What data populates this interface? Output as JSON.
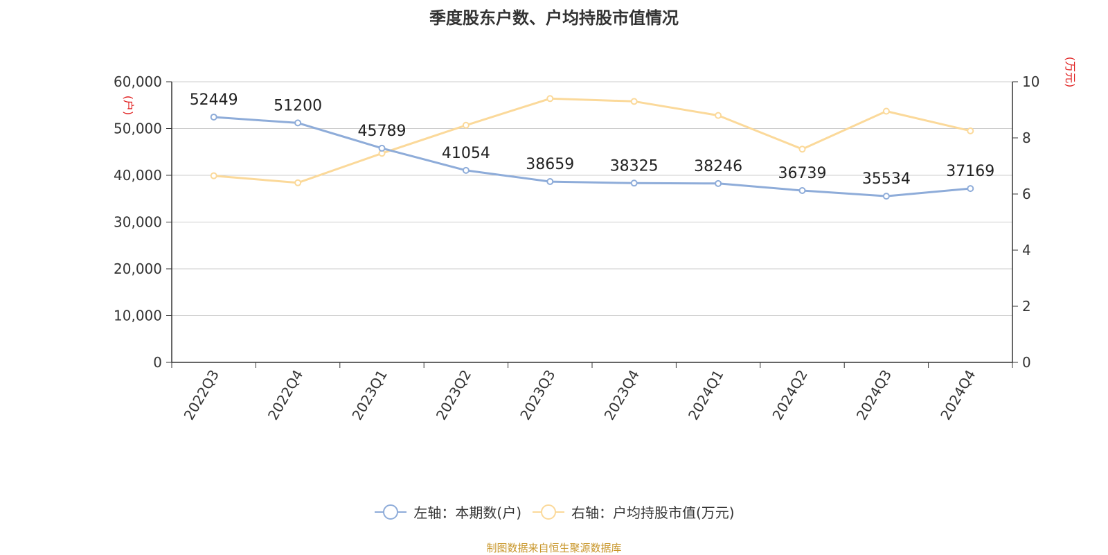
{
  "chart_data": {
    "type": "line",
    "title": "季度股东户数、户均持股市值情况",
    "categories": [
      "2022Q3",
      "2022Q4",
      "2023Q1",
      "2023Q2",
      "2023Q3",
      "2023Q4",
      "2024Q1",
      "2024Q2",
      "2024Q3",
      "2024Q4"
    ],
    "series": [
      {
        "name": "左轴：本期数(户)",
        "axis": "left",
        "color": "#8eacd9",
        "values": [
          52449,
          51200,
          45789,
          41054,
          38659,
          38325,
          38246,
          36739,
          35534,
          37169
        ],
        "show_labels": true
      },
      {
        "name": "右轴：户均持股市值(万元)",
        "axis": "right",
        "color": "#fbd99a",
        "values": [
          6.65,
          6.4,
          7.45,
          8.45,
          9.4,
          9.3,
          8.8,
          7.6,
          8.95,
          8.25
        ],
        "show_labels": false
      }
    ],
    "y_left": {
      "label": "(户)",
      "ylim": [
        0,
        60000
      ],
      "ticks": [
        "0",
        "10,000",
        "20,000",
        "30,000",
        "40,000",
        "50,000",
        "60,000"
      ]
    },
    "y_right": {
      "label": "(万元)",
      "ylim": [
        0,
        10
      ],
      "ticks": [
        "0",
        "2",
        "4",
        "6",
        "8",
        "10"
      ]
    },
    "grid": true,
    "legend_position": "bottom"
  },
  "source_note": "制图数据来自恒生聚源数据库"
}
